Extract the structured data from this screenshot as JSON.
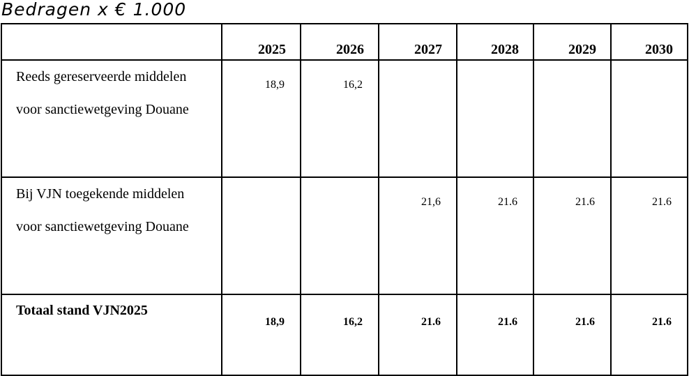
{
  "caption": "Bedragen x € 1.000",
  "table": {
    "header": [
      "2025",
      "2026",
      "2027",
      "2028",
      "2029",
      "2030"
    ],
    "rows": [
      {
        "label": "Reeds gereserveerde middelen voor sanctiewetgeving Douane",
        "values": [
          "18,9",
          "16,2",
          null,
          null,
          null,
          null
        ]
      },
      {
        "label": "Bij VJN toegekende middelen voor sanctiewetgeving Douane",
        "values": [
          null,
          null,
          "21,6",
          "21.6",
          "21.6",
          "21.6"
        ]
      }
    ],
    "total": {
      "label": "Totaal stand VJN2025",
      "values": [
        "18,9",
        "16,2",
        "21.6",
        "21.6",
        "21.6",
        "21.6"
      ]
    }
  }
}
